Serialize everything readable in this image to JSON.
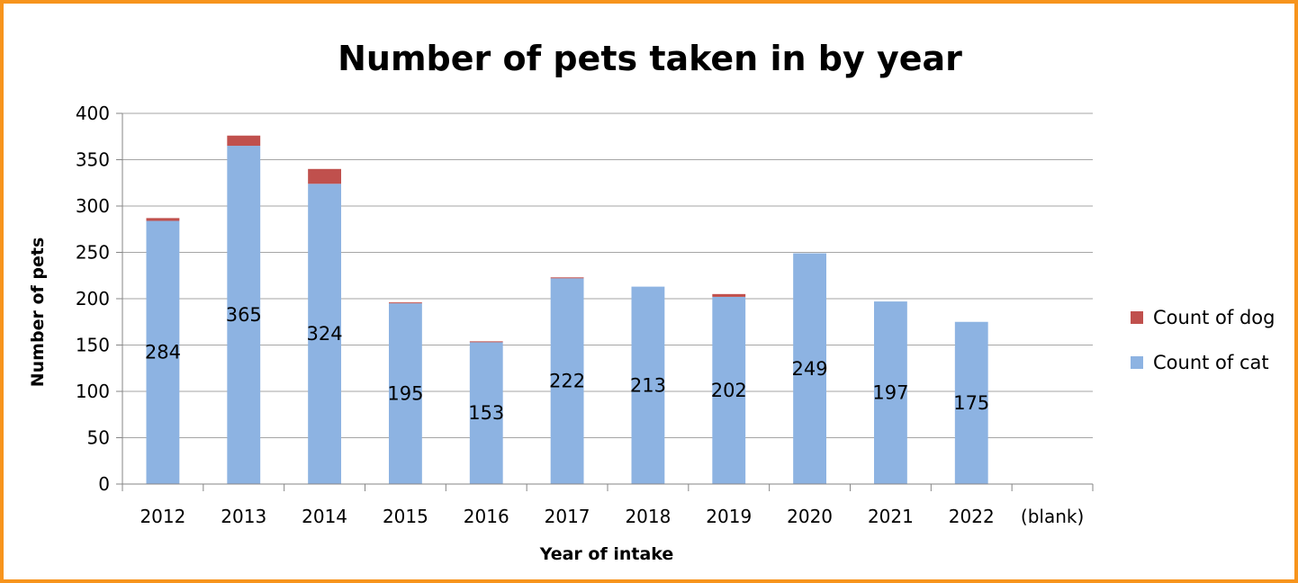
{
  "chart_data": {
    "type": "bar",
    "stacked": true,
    "title": "Number of pets taken in by year",
    "xlabel": "Year of intake",
    "ylabel": "Number of pets",
    "ylim": [
      0,
      400
    ],
    "yticks": [
      0,
      50,
      100,
      150,
      200,
      250,
      300,
      350,
      400
    ],
    "grid": true,
    "legend_position": "right",
    "categories": [
      "2012",
      "2013",
      "2014",
      "2015",
      "2016",
      "2017",
      "2018",
      "2019",
      "2020",
      "2021",
      "2022",
      "(blank)"
    ],
    "series": [
      {
        "name": "Count of cat",
        "color": "#8db3e2",
        "values": [
          284,
          365,
          324,
          195,
          153,
          222,
          213,
          202,
          249,
          197,
          175,
          null
        ],
        "data_labels": [
          "284",
          "365",
          "324",
          "195",
          "153",
          "222",
          "213",
          "202",
          "249",
          "197",
          "175",
          ""
        ]
      },
      {
        "name": "Count of dog",
        "color": "#c0504d",
        "values": [
          3,
          11,
          16,
          1,
          1,
          1,
          0,
          3,
          0,
          0,
          0,
          null
        ]
      }
    ]
  }
}
